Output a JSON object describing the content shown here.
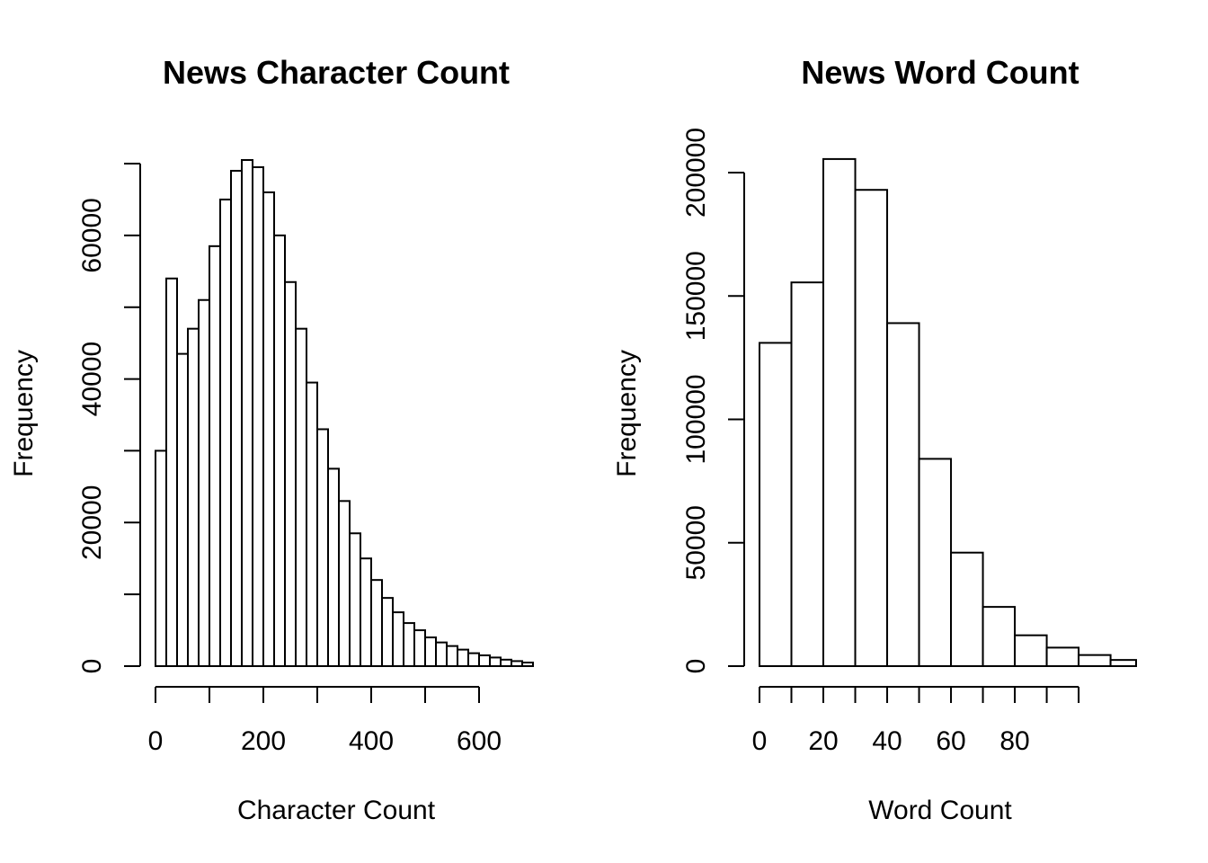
{
  "chart_data": [
    {
      "type": "bar",
      "title": "News Character Count",
      "xlabel": "Character Count",
      "ylabel": "Frequency",
      "bin_width": 20,
      "x_start": 0,
      "values": [
        30000,
        54000,
        43500,
        47000,
        51000,
        58500,
        65000,
        69000,
        70500,
        69500,
        66000,
        60000,
        53500,
        47000,
        39500,
        33000,
        27500,
        23000,
        18500,
        15000,
        12000,
        9500,
        7500,
        6000,
        5000,
        4000,
        3300,
        2800,
        2300,
        1800,
        1500,
        1200,
        900,
        700,
        500
      ],
      "xlim": [
        0,
        700
      ],
      "ylim": [
        0,
        70000
      ],
      "x_ticks": [
        0,
        100,
        200,
        300,
        400,
        500,
        600
      ],
      "x_tick_labels": [
        "0",
        "200",
        "400",
        "600"
      ],
      "x_tick_label_values": [
        0,
        200,
        400,
        600
      ],
      "y_ticks": [
        0,
        10000,
        20000,
        30000,
        40000,
        50000,
        60000,
        70000
      ],
      "y_tick_labels": [
        "0",
        "20000",
        "40000",
        "60000"
      ],
      "y_tick_label_values": [
        0,
        20000,
        40000,
        60000
      ]
    },
    {
      "type": "bar",
      "title": "News Word Count",
      "xlabel": "Word Count",
      "ylabel": "Frequency",
      "bin_width": 10,
      "x_start": 0,
      "values": [
        131000,
        155500,
        205500,
        193000,
        139000,
        84000,
        46000,
        24000,
        12500,
        7500,
        4500,
        2500
      ],
      "xlim": [
        0,
        118
      ],
      "ylim": [
        0,
        200000
      ],
      "x_ticks": [
        0,
        10,
        20,
        30,
        40,
        50,
        60,
        70,
        80,
        90,
        100
      ],
      "x_tick_labels": [
        "0",
        "20",
        "40",
        "60",
        "80"
      ],
      "x_tick_label_values": [
        0,
        20,
        40,
        60,
        80
      ],
      "y_ticks": [
        0,
        50000,
        100000,
        150000,
        200000
      ],
      "y_tick_labels": [
        "0",
        "50000",
        "100000",
        "150000",
        "200000"
      ],
      "y_tick_label_values": [
        0,
        50000,
        100000,
        150000,
        200000
      ]
    }
  ]
}
